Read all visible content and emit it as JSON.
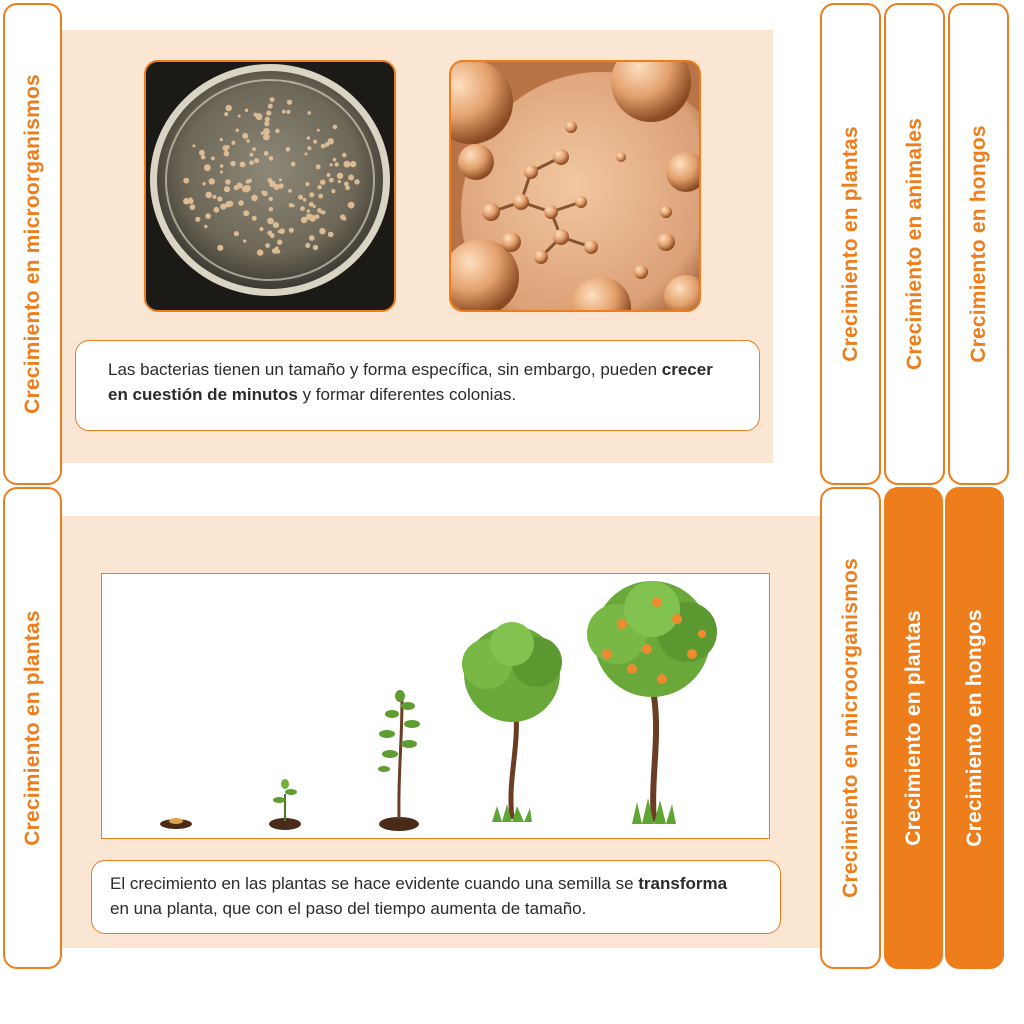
{
  "left_tabs": {
    "top": "Crecimiento en microorganismos",
    "bottom": "Crecimiento en plantas"
  },
  "right_tabs_top": [
    {
      "label": "Crecimiento en plantas",
      "active": false
    },
    {
      "label": "Crecimiento en animales",
      "active": false
    },
    {
      "label": "Crecimiento en hongos",
      "active": false
    }
  ],
  "right_tabs_bottom": [
    {
      "label": "Crecimiento en microorganismos",
      "active": false
    },
    {
      "label": "Crecimiento en plantas",
      "active": true
    },
    {
      "label": "Crecimiento en hongos",
      "active": true
    }
  ],
  "micro_card": {
    "caption_pre": "Las bacterias tienen un tamaño y forma específica, sin embargo, pueden ",
    "caption_bold": "crecer en cuestión de minutos",
    "caption_post": " y formar diferentes colonias."
  },
  "plant_card": {
    "caption_pre": "El crecimiento en las plantas se hace evidente cuando una semilla se ",
    "caption_bold": "transforma",
    "caption_post": " en una planta, que con el paso del tiempo aumenta de tamaño."
  },
  "colors": {
    "accent": "#ee7d1b",
    "panel": "#fbe6d4",
    "text": "#2b2b2b"
  }
}
